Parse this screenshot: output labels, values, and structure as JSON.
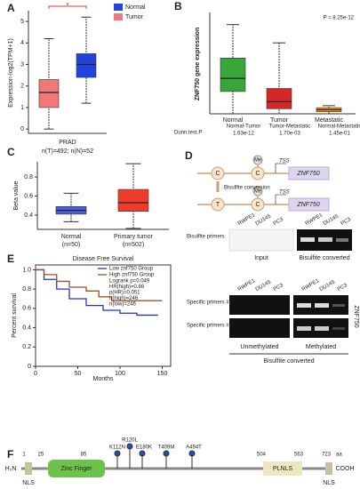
{
  "panel_labels": [
    "A",
    "B",
    "C",
    "D",
    "E",
    "F"
  ],
  "chart_data": [
    {
      "type": "box",
      "y_label": "Expression-log2(TPM+1)",
      "significance": "*",
      "x_label": "PRAD",
      "note": "n(T)=492; n(N)=52",
      "ylim": [
        -0.2,
        5.5
      ],
      "yticks": [
        0,
        1,
        2,
        3,
        4,
        5
      ],
      "series": [
        {
          "name": "Tumor",
          "color": "#f07878",
          "whisker_low": 0,
          "q1": 1.0,
          "median": 1.7,
          "q3": 2.3,
          "whisker_high": 4.2
        },
        {
          "name": "Normal",
          "color": "#2244dd",
          "whisker_low": 1.2,
          "q1": 2.4,
          "median": 3.0,
          "q3": 3.5,
          "whisker_high": 5.2
        }
      ]
    },
    {
      "type": "box",
      "y_label": "ZNF750 gene expression",
      "p_value": "P = 8.25e-12",
      "ylim": [
        0,
        100
      ],
      "categories": [
        "Normal",
        "Tumor",
        "Metastatic"
      ],
      "series": [
        {
          "name": "Normal",
          "color": "#3aa53a",
          "whisker_low": 0,
          "q1": 22,
          "median": 35,
          "q3": 55,
          "whisker_high": 88
        },
        {
          "name": "Tumor",
          "color": "#d62728",
          "whisker_low": 0,
          "q1": 5,
          "median": 12,
          "q3": 25,
          "whisker_high": 70
        },
        {
          "name": "Metastatic",
          "color": "#ff8c00",
          "whisker_low": 0,
          "q1": 2,
          "median": 4,
          "q3": 6,
          "whisker_high": 8
        }
      ],
      "dunn": {
        "label": "Dunn.test.P",
        "pairs": [
          "Normal-Tumor",
          "Tumor-Metastatic",
          "Normal-Metastatic"
        ],
        "p": [
          "1.63e-12",
          "1.70e-03",
          "1.45e-01"
        ]
      }
    },
    {
      "type": "box",
      "y_label": "Beta value",
      "ylim": [
        0.25,
        0.96
      ],
      "yticks": [
        0.4,
        0.6,
        0.8
      ],
      "categories": [
        "Normal",
        "Primary tumor"
      ],
      "n_labels": [
        "(n=50)",
        "(n=502)"
      ],
      "series": [
        {
          "name": "Normal",
          "color": "#4a5ee0",
          "whisker_low": 0.33,
          "q1": 0.41,
          "median": 0.45,
          "q3": 0.49,
          "whisker_high": 0.63
        },
        {
          "name": "Primary tumor",
          "color": "#f03a2a",
          "whisker_low": 0.26,
          "q1": 0.44,
          "median": 0.53,
          "q3": 0.67,
          "whisker_high": 0.94
        }
      ]
    },
    {
      "type": "survival",
      "title": "Disease Free Survival",
      "x_label": "Months",
      "y_label": "Percent survival",
      "xlim": [
        0,
        160
      ],
      "xticks": [
        0,
        50,
        100,
        150
      ],
      "ylim": [
        0,
        1.05
      ],
      "yticks": [
        0,
        0.2,
        0.4,
        0.6,
        0.8,
        {
          "value": 1,
          "label": "1.0"
        }
      ],
      "series": [
        {
          "name": "Low znf750 Group",
          "color": "#2233cc",
          "x": [
            0,
            10,
            25,
            40,
            60,
            80,
            100,
            120,
            145
          ],
          "values": [
            1,
            0.9,
            0.8,
            0.7,
            0.63,
            0.58,
            0.55,
            0.53,
            0.53
          ]
        },
        {
          "name": "High znf750 Group",
          "color": "#a0522d",
          "x": [
            0,
            10,
            25,
            40,
            60,
            75,
            90,
            150
          ],
          "values": [
            1,
            0.95,
            0.88,
            0.82,
            0.78,
            0.72,
            0.68,
            0.68
          ]
        }
      ],
      "legend_notes": [
        "Logrank p=0.049",
        "HR(high)=0.66",
        "p(HR)=0.051",
        "n(high)=246",
        "n(low)=246"
      ]
    }
  ],
  "panel_d": {
    "me": "Me",
    "tss": "TSS",
    "gene": "ZNF750",
    "c": "C",
    "t": "T",
    "conversion": "Bisulfite conversion",
    "cells": [
      "RWPE1",
      "DU145",
      "PC3"
    ],
    "bisulfite_primers": "Bisulfite primers",
    "input": "Input",
    "converted": "Bisulfite converted",
    "primer1": "Specific primers #1",
    "primer2": "Specific primers #2",
    "unmethylated": "Unmethylated",
    "methylated": "Methylated"
  },
  "panel_f": {
    "n_term": "H₂N",
    "c_term": "COOH",
    "zinc": "Zinc Finger",
    "plnls": "PLNLS",
    "nls": "NLS",
    "aa": "aa",
    "positions": [
      "1",
      "25",
      "85",
      "504",
      "563",
      "723"
    ],
    "mutations": [
      "K112N",
      "R120L",
      "E180K",
      "T409M",
      "A494T"
    ]
  }
}
